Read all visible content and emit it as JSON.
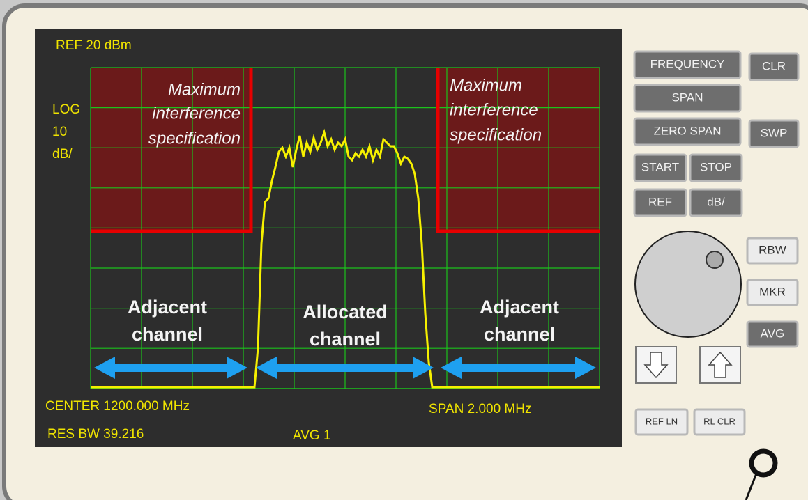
{
  "screen": {
    "ref": "REF 20 dBm",
    "scale": [
      "LOG",
      "10",
      "dB/"
    ],
    "left_region": [
      "Maximum",
      "interference",
      "specification"
    ],
    "right_region": [
      "Maximum",
      "interference",
      "specification"
    ],
    "left_channel": [
      "Adjacent",
      "channel"
    ],
    "center_channel": [
      "Allocated",
      "channel"
    ],
    "right_channel": [
      "Adjacent",
      "channel"
    ],
    "center": "CENTER 1200.000 MHz",
    "span": "SPAN 2.000 MHz",
    "res_bw": "RES BW 39.216",
    "avg": "AVG 1"
  },
  "buttons": [
    "FREQUENCY",
    "CLR",
    "SPAN",
    "ZERO SPAN",
    "SWP",
    "START",
    "STOP",
    "REF",
    "dB/",
    "RBW",
    "MKR",
    "AVG",
    "REF LN",
    "RL CLR"
  ]
}
